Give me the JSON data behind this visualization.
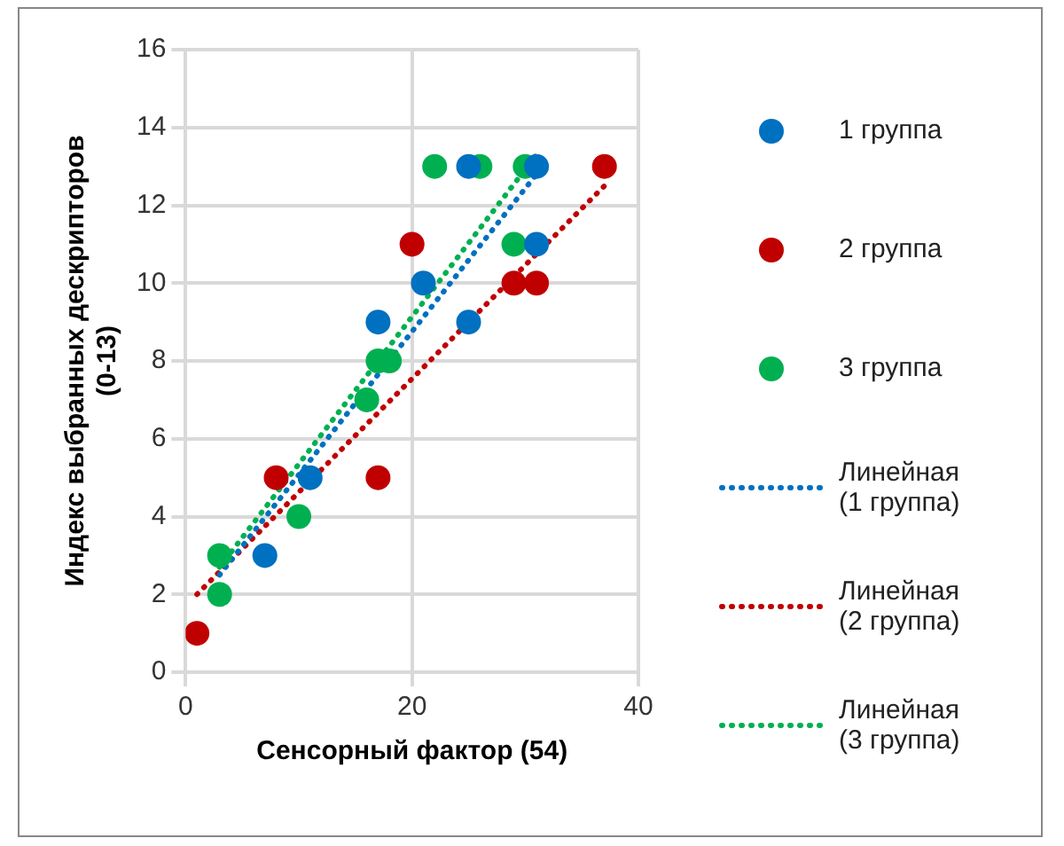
{
  "chart_data": {
    "type": "scatter",
    "xlabel": "Сенсорный фактор (54)",
    "ylabel": "Индекс выбранных дескрипторов (0-13)",
    "xlim": [
      0,
      40
    ],
    "xticks": [
      0,
      20,
      40
    ],
    "ylim": [
      0,
      16
    ],
    "yticks": [
      0,
      2,
      4,
      6,
      8,
      10,
      12,
      14,
      16
    ],
    "grid": true,
    "legend": "right",
    "marker": "circle",
    "series": [
      {
        "name": "1 группа",
        "color": "#0070c0",
        "x": [
          7,
          11,
          17,
          21,
          25,
          25,
          31,
          31
        ],
        "values": [
          3,
          5,
          9,
          10,
          9,
          13,
          13,
          11
        ]
      },
      {
        "name": "2 группа",
        "color": "#c00000",
        "x": [
          1,
          8,
          17,
          20,
          29,
          31,
          37
        ],
        "values": [
          1,
          5,
          5,
          11,
          10,
          10,
          13
        ]
      },
      {
        "name": "3 группа",
        "color": "#00b050",
        "x": [
          3,
          3,
          10,
          16,
          17,
          18,
          22,
          26,
          29,
          30
        ],
        "values": [
          2,
          3,
          4,
          7,
          8,
          8,
          13,
          13,
          11,
          13
        ]
      },
      {
        "name": "Линейная (1 группа)",
        "type": "line",
        "line_style": "dotted",
        "marker": "none",
        "color": "#0070c0",
        "x": [
          3,
          31
        ],
        "values": [
          2.5,
          12.8
        ]
      },
      {
        "name": "Линейная (2 группа)",
        "type": "line",
        "line_style": "dotted",
        "marker": "none",
        "color": "#c00000",
        "x": [
          1,
          37
        ],
        "values": [
          2,
          12.5
        ]
      },
      {
        "name": "Линейная (3 группа)",
        "type": "line",
        "line_style": "dotted",
        "marker": "none",
        "color": "#00b050",
        "x": [
          3,
          31
        ],
        "values": [
          2.7,
          13.3
        ]
      }
    ]
  }
}
